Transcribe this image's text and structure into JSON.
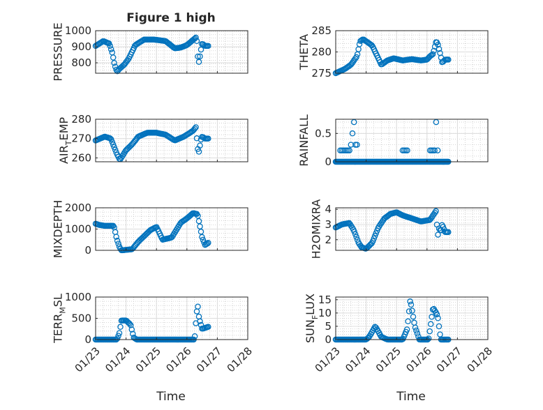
{
  "figure": {
    "title": "Figure 1 high",
    "marker_color": "#0072bd"
  },
  "chart_data": [
    {
      "type": "scatter",
      "ylabel": "PRESSURE",
      "ylim": [
        735,
        1000
      ],
      "yticks": [
        800,
        900,
        1000
      ],
      "ytick_labels": [
        "800",
        "900",
        "1000"
      ],
      "xlim": [
        0,
        5
      ],
      "xticks": [
        0,
        1,
        2,
        3,
        4,
        5
      ],
      "xtick_labels": [
        "01/23",
        "01/24",
        "01/25",
        "01/26",
        "01/27",
        "01/28"
      ],
      "x_knots": [
        0,
        0.25,
        0.45,
        0.55,
        0.62,
        0.7,
        0.8,
        0.95,
        1.1,
        1.3,
        1.6,
        1.9,
        2.3,
        2.6,
        2.8,
        3.0,
        3.3,
        3.32,
        3.35,
        3.4,
        3.45,
        3.5,
        3.6,
        3.7
      ],
      "y_knots": [
        905,
        935,
        920,
        860,
        790,
        745,
        765,
        790,
        830,
        910,
        945,
        945,
        935,
        890,
        895,
        910,
        958,
        960,
        850,
        800,
        870,
        920,
        905,
        905
      ]
    },
    {
      "type": "scatter",
      "ylabel": "THETA",
      "ylim": [
        275,
        285
      ],
      "yticks": [
        275,
        280,
        285
      ],
      "ytick_labels": [
        "275",
        "280",
        "285"
      ],
      "xlim": [
        0,
        5
      ],
      "xticks": [
        0,
        1,
        2,
        3,
        4,
        5
      ],
      "xtick_labels": [
        "01/23",
        "01/24",
        "01/25",
        "01/26",
        "01/27",
        "01/28"
      ],
      "x_knots": [
        0,
        0.3,
        0.5,
        0.7,
        0.8,
        0.9,
        1.0,
        1.2,
        1.4,
        1.5,
        1.7,
        1.9,
        2.2,
        2.5,
        2.8,
        3.0,
        3.1,
        3.2,
        3.3,
        3.35,
        3.42,
        3.5,
        3.6,
        3.7
      ],
      "y_knots": [
        275,
        276,
        277,
        279,
        282.5,
        283,
        282.5,
        281.5,
        278.5,
        277,
        278,
        278.5,
        278,
        278.3,
        278,
        278.2,
        279,
        279.5,
        282.5,
        282,
        280,
        277.5,
        278.2,
        278.2
      ]
    },
    {
      "type": "scatter",
      "ylabel": "AIR_TEMP",
      "ylim": [
        258,
        280
      ],
      "yticks": [
        260,
        270,
        280
      ],
      "ytick_labels": [
        "260",
        "270",
        "280"
      ],
      "xlim": [
        0,
        5
      ],
      "xticks": [
        0,
        1,
        2,
        3,
        4,
        5
      ],
      "xtick_labels": [
        "01/23",
        "01/24",
        "01/25",
        "01/26",
        "01/27",
        "01/28"
      ],
      "x_knots": [
        0,
        0.3,
        0.5,
        0.6,
        0.7,
        0.8,
        1.0,
        1.2,
        1.4,
        1.7,
        2.0,
        2.3,
        2.6,
        2.9,
        3.2,
        3.3,
        3.35,
        3.4,
        3.45,
        3.5,
        3.6,
        3.7
      ],
      "y_knots": [
        269,
        271,
        270,
        266,
        262,
        259,
        264,
        267,
        271,
        273,
        273,
        272,
        269,
        271,
        274,
        276,
        265,
        263,
        269,
        271,
        270,
        270
      ]
    },
    {
      "type": "scatter",
      "ylabel": "RAINFALL",
      "ylim": [
        0,
        0.75
      ],
      "yticks": [
        0,
        0.5
      ],
      "ytick_labels": [
        "0",
        "0.5"
      ],
      "xlim": [
        0,
        5
      ],
      "xticks": [
        0,
        1,
        2,
        3,
        4,
        5
      ],
      "xtick_labels": [
        "01/23",
        "01/24",
        "01/25",
        "01/26",
        "01/27",
        "01/28"
      ],
      "baseline": {
        "y": 0,
        "x_range": [
          0,
          3.7
        ],
        "count": 150
      },
      "points": [
        [
          0.15,
          0.2
        ],
        [
          0.2,
          0.2
        ],
        [
          0.25,
          0.2
        ],
        [
          0.3,
          0.2
        ],
        [
          0.35,
          0.2
        ],
        [
          0.4,
          0.2
        ],
        [
          0.45,
          0.2
        ],
        [
          0.5,
          0.3
        ],
        [
          0.55,
          0.5
        ],
        [
          0.6,
          0.7
        ],
        [
          0.65,
          0.3
        ],
        [
          0.7,
          0.3
        ],
        [
          2.2,
          0.2
        ],
        [
          2.25,
          0.2
        ],
        [
          2.3,
          0.2
        ],
        [
          2.35,
          0.2
        ],
        [
          3.1,
          0.2
        ],
        [
          3.15,
          0.2
        ],
        [
          3.2,
          0.2
        ],
        [
          3.25,
          0.2
        ],
        [
          3.3,
          0.7
        ],
        [
          3.35,
          0.2
        ]
      ]
    },
    {
      "type": "scatter",
      "ylabel": "MIXDEPTH",
      "ylim": [
        0,
        2000
      ],
      "yticks": [
        0,
        1000,
        2000
      ],
      "ytick_labels": [
        "0",
        "1000",
        "2000"
      ],
      "xlim": [
        0,
        5
      ],
      "xticks": [
        0,
        1,
        2,
        3,
        4,
        5
      ],
      "xtick_labels": [
        "01/23",
        "01/24",
        "01/25",
        "01/26",
        "01/27",
        "01/28"
      ],
      "x_knots": [
        0,
        0.1,
        0.3,
        0.6,
        0.7,
        0.8,
        0.85,
        1.2,
        1.4,
        1.8,
        2.0,
        2.2,
        2.5,
        2.8,
        3.0,
        3.2,
        3.35,
        3.5,
        3.6,
        3.7
      ],
      "y_knots": [
        1250,
        1200,
        1150,
        1150,
        500,
        100,
        0,
        50,
        400,
        950,
        1100,
        500,
        600,
        1300,
        1500,
        1750,
        1700,
        600,
        250,
        350
      ]
    },
    {
      "type": "scatter",
      "ylabel": "H2OMIXRA",
      "ylim": [
        1.3,
        4.1
      ],
      "yticks": [
        2,
        3,
        4
      ],
      "ytick_labels": [
        "2",
        "3",
        "4"
      ],
      "xlim": [
        0,
        5
      ],
      "xticks": [
        0,
        1,
        2,
        3,
        4,
        5
      ],
      "xtick_labels": [
        "01/23",
        "01/24",
        "01/25",
        "01/26",
        "01/27",
        "01/28"
      ],
      "x_knots": [
        0,
        0.2,
        0.45,
        0.6,
        0.75,
        0.85,
        1.0,
        1.2,
        1.4,
        1.6,
        1.8,
        2.0,
        2.2,
        2.5,
        2.8,
        3.1,
        3.3,
        3.35,
        3.4,
        3.45,
        3.5,
        3.6,
        3.7
      ],
      "y_knots": [
        2.8,
        3.0,
        3.1,
        2.6,
        1.8,
        1.5,
        1.4,
        1.8,
        2.8,
        3.4,
        3.7,
        3.8,
        3.6,
        3.4,
        3.2,
        3.3,
        3.9,
        2.2,
        2.8,
        2.5,
        3.0,
        2.5,
        2.5
      ]
    },
    {
      "type": "scatter",
      "ylabel": "TERR_MSL",
      "ylim": [
        0,
        1000
      ],
      "yticks": [
        0,
        500,
        1000
      ],
      "ytick_labels": [
        "0",
        "500",
        "1000"
      ],
      "xlim": [
        0,
        5
      ],
      "xticks": [
        0,
        1,
        2,
        3,
        4,
        5
      ],
      "xtick_labels": [
        "01/23",
        "01/24",
        "01/25",
        "01/26",
        "01/27",
        "01/28"
      ],
      "x_knots": [
        0,
        0.7,
        0.78,
        0.85,
        1.0,
        1.15,
        1.25,
        1.35,
        3.2,
        3.25,
        3.3,
        3.35,
        3.4,
        3.5,
        3.7
      ],
      "y_knots": [
        0,
        0,
        150,
        450,
        450,
        350,
        50,
        0,
        0,
        0,
        450,
        850,
        500,
        250,
        300
      ]
    },
    {
      "type": "scatter",
      "ylabel": "SUN_FLUX",
      "ylim": [
        0,
        16
      ],
      "yticks": [
        0,
        5,
        10,
        15
      ],
      "ytick_labels": [
        "0",
        "5",
        "10",
        "15"
      ],
      "xlim": [
        0,
        5
      ],
      "xticks": [
        0,
        1,
        2,
        3,
        4,
        5
      ],
      "xtick_labels": [
        "01/23",
        "01/24",
        "01/25",
        "01/26",
        "01/27",
        "01/28"
      ],
      "x_knots": [
        0,
        1.0,
        1.1,
        1.3,
        1.5,
        1.7,
        2.2,
        2.35,
        2.45,
        2.6,
        2.75,
        3.05,
        3.2,
        3.35,
        3.45,
        3.55,
        3.7
      ],
      "y_knots": [
        0,
        0,
        1,
        5,
        1,
        0,
        0,
        4,
        15,
        5,
        0,
        0,
        12,
        9,
        0,
        0,
        0
      ]
    }
  ],
  "xlabel_left": "Time",
  "xlabel_right": "Time"
}
